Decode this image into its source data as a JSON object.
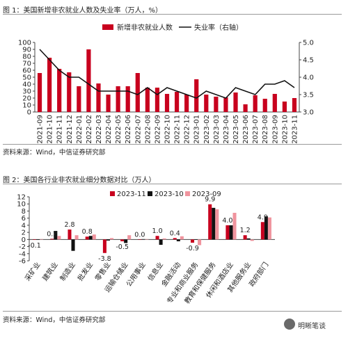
{
  "figures": [
    {
      "title": "图 1：美国新增非农就业人数及失业率（万人，%）",
      "source": "资料来源：Wind，中信证券研究部"
    },
    {
      "title": "图 2：美国各行业非农就业细分数据对比（万人）",
      "source": "资料来源：Wind，中信证券研究部"
    }
  ],
  "watermark": {
    "text": "明晰笔谈"
  },
  "chart_data": [
    {
      "type": "bar",
      "categories": [
        "2021-09",
        "2021-10",
        "2021-11",
        "2021-12",
        "2022-01",
        "2022-02",
        "2022-03",
        "2022-04",
        "2022-05",
        "2022-06",
        "2022-07",
        "2022-08",
        "2022-09",
        "2022-10",
        "2022-11",
        "2022-12",
        "2023-01",
        "2023-02",
        "2023-03",
        "2023-04",
        "2023-05",
        "2023-06",
        "2023-07",
        "2023-08",
        "2023-09",
        "2023-10",
        "2023-11"
      ],
      "series": [
        {
          "name": "新增非农就业人数",
          "type": "bar",
          "axis": "left",
          "color": "#c8001e",
          "values": [
            56,
            78,
            62,
            57,
            37,
            90,
            41,
            25,
            37,
            37,
            56,
            35,
            35,
            26,
            29,
            25,
            47,
            25,
            22,
            21,
            28,
            11,
            24,
            19,
            26,
            15,
            20
          ]
        },
        {
          "name": "失业率（右轴）",
          "type": "line",
          "axis": "right",
          "color": "#111111",
          "values": [
            4.8,
            4.5,
            4.2,
            4.0,
            4.0,
            3.8,
            3.6,
            3.6,
            3.6,
            3.6,
            3.5,
            3.7,
            3.5,
            3.7,
            3.6,
            3.5,
            3.4,
            3.6,
            3.5,
            3.4,
            3.7,
            3.6,
            3.5,
            3.8,
            3.8,
            3.9,
            3.7
          ]
        }
      ],
      "ylim": [
        0,
        100
      ],
      "yticks": [
        0,
        10,
        20,
        30,
        40,
        50,
        60,
        70,
        80,
        90,
        100
      ],
      "y2lim": [
        3.0,
        5.0
      ],
      "y2ticks": [
        "3.0",
        "3.5",
        "4.0",
        "4.5",
        "5.0"
      ],
      "legend": "top-center"
    },
    {
      "type": "bar",
      "categories": [
        "采矿业",
        "建筑业",
        "制造业",
        "批发业",
        "零售业",
        "运输仓储业",
        "公用事业",
        "信息业",
        "金融活动",
        "专业和商业服务",
        "教育和保健服务",
        "休闲和酒店业",
        "其他服务业",
        "政府部门"
      ],
      "series": [
        {
          "name": "2023-11",
          "color": "#c8001e",
          "values": [
            -0.1,
            0.2,
            2.8,
            0.8,
            -3.8,
            -0.5,
            0.0,
            1.0,
            0.4,
            -0.9,
            9.9,
            4.0,
            1.2,
            4.9
          ]
        },
        {
          "name": "2023-10",
          "color": "#111111",
          "values": [
            0.0,
            2.4,
            -3.2,
            1.0,
            -0.3,
            -1.0,
            0.1,
            -1.5,
            -0.5,
            0.0,
            8.9,
            4.0,
            0.3,
            6.5
          ]
        },
        {
          "name": "2023-09",
          "color": "#f0949e",
          "values": [
            0.1,
            1.0,
            1.2,
            1.4,
            0.4,
            1.2,
            0.1,
            0.3,
            0.9,
            -1.6,
            8.5,
            7.5,
            -0.4,
            6.2
          ]
        }
      ],
      "labels": [
        "-0.1",
        "0.2",
        "2.8",
        "0.8",
        "-3.8",
        "-0.5",
        "0.0",
        "1.0",
        "0.4",
        "-0.9",
        "9.9",
        "4.0",
        "1.2",
        "4.9"
      ],
      "ylim": [
        -6,
        12
      ],
      "yticks": [
        -6,
        -4,
        -2,
        0,
        2,
        4,
        6,
        8,
        10,
        12
      ],
      "legend": "top-center"
    }
  ]
}
